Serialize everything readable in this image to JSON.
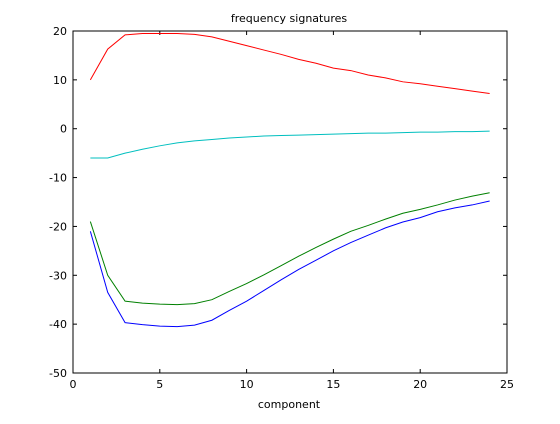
{
  "chart_data": {
    "type": "line",
    "title": "frequency signatures",
    "xlabel": "component",
    "ylabel": "",
    "xlim": [
      0,
      25
    ],
    "ylim": [
      -50,
      20
    ],
    "xticks": [
      0,
      5,
      10,
      15,
      20,
      25
    ],
    "yticks": [
      -50,
      -40,
      -30,
      -20,
      -10,
      0,
      10,
      20
    ],
    "grid": false,
    "x": [
      1,
      2,
      3,
      4,
      5,
      6,
      7,
      8,
      9,
      10,
      11,
      12,
      13,
      14,
      15,
      16,
      17,
      18,
      19,
      20,
      21,
      22,
      23,
      24
    ],
    "series": [
      {
        "color": "#ff0000",
        "values": [
          10,
          16.3,
          19.2,
          19.5,
          19.5,
          19.5,
          19.3,
          18.8,
          17.9,
          17.0,
          16.1,
          15.2,
          14.2,
          13.4,
          12.4,
          11.9,
          11.0,
          10.4,
          9.6,
          9.2,
          8.7,
          8.2,
          7.7,
          7.2
        ]
      },
      {
        "color": "#00bfbf",
        "values": [
          -6.0,
          -6.0,
          -5.0,
          -4.2,
          -3.5,
          -2.9,
          -2.5,
          -2.2,
          -1.9,
          -1.7,
          -1.5,
          -1.4,
          -1.3,
          -1.2,
          -1.1,
          -1.0,
          -0.9,
          -0.9,
          -0.8,
          -0.7,
          -0.7,
          -0.6,
          -0.6,
          -0.5
        ]
      },
      {
        "color": "#008000",
        "values": [
          -19.0,
          -30.0,
          -35.3,
          -35.7,
          -35.9,
          -36.0,
          -35.8,
          -35.0,
          -33.3,
          -31.7,
          -29.9,
          -28.0,
          -26.1,
          -24.3,
          -22.6,
          -21.0,
          -19.8,
          -18.5,
          -17.3,
          -16.5,
          -15.6,
          -14.6,
          -13.8,
          -13.1
        ]
      },
      {
        "color": "#0000ff",
        "values": [
          -21.0,
          -33.5,
          -39.7,
          -40.1,
          -40.4,
          -40.5,
          -40.2,
          -39.2,
          -37.2,
          -35.3,
          -33.1,
          -30.9,
          -28.8,
          -26.9,
          -25.0,
          -23.3,
          -21.8,
          -20.3,
          -19.1,
          -18.2,
          -17.0,
          -16.2,
          -15.6,
          -14.8
        ]
      }
    ]
  }
}
